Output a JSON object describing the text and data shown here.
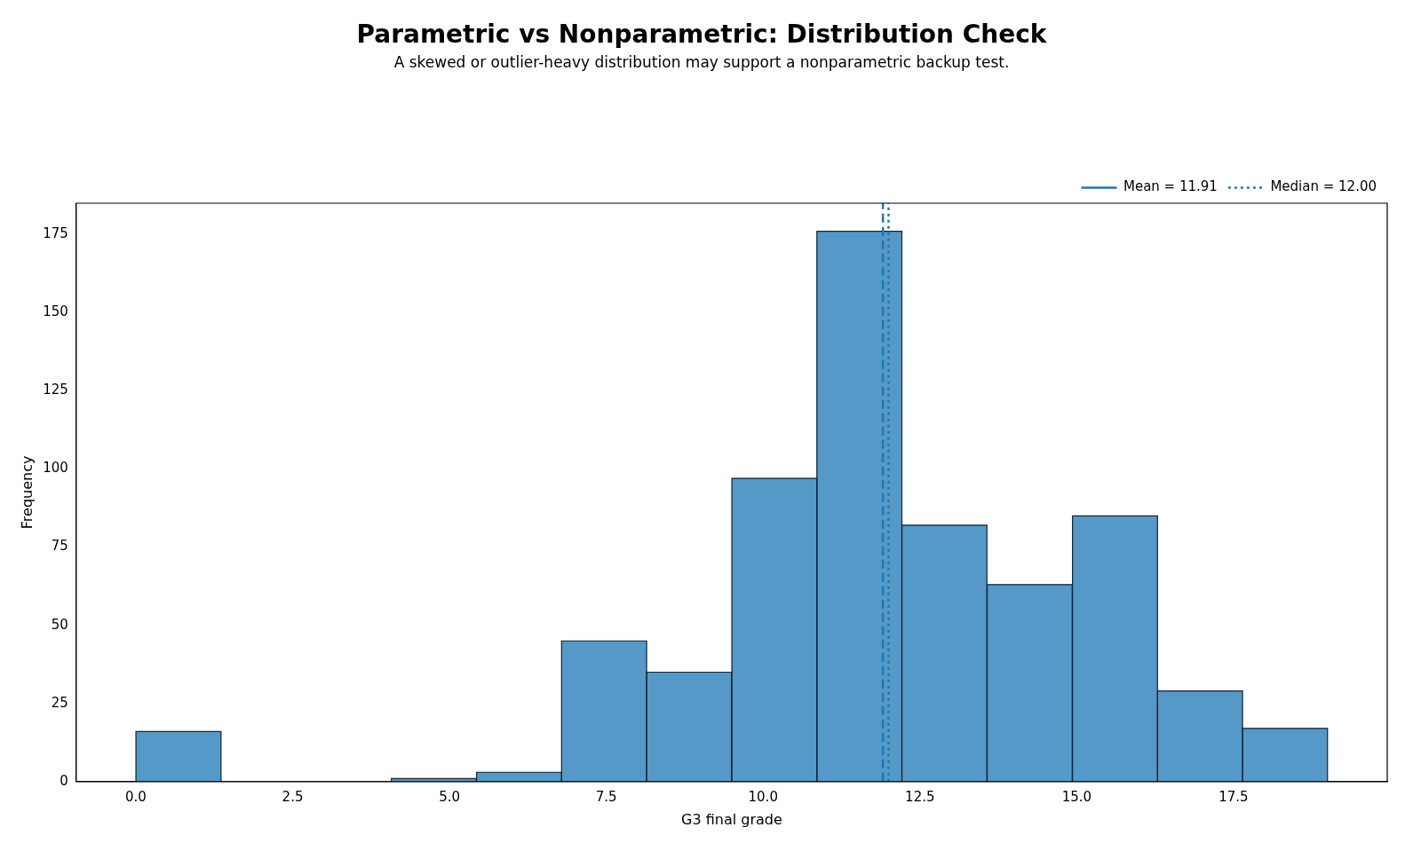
{
  "chart_data": {
    "type": "histogram",
    "title": "Parametric vs Nonparametric: Distribution Check",
    "subtitle": "A skewed or outlier-heavy distribution may support a nonparametric backup test.",
    "xlabel": "G3 final grade",
    "ylabel": "Frequency",
    "bins": [
      0,
      1.36,
      2.71,
      4.07,
      5.43,
      6.79,
      8.14,
      9.5,
      10.86,
      12.21,
      13.57,
      14.93,
      16.29,
      17.64,
      19
    ],
    "values": [
      16,
      0,
      0,
      1,
      3,
      45,
      35,
      97,
      176,
      82,
      63,
      85,
      29,
      17
    ],
    "color": "#5599c8",
    "xlim": [
      -0.95,
      19.95
    ],
    "xticks": [
      {
        "value": 0,
        "label": "0.0"
      },
      {
        "value": 2.5,
        "label": "2.5"
      },
      {
        "value": 5,
        "label": "5.0"
      },
      {
        "value": 7.5,
        "label": "7.5"
      },
      {
        "value": 10,
        "label": "10.0"
      },
      {
        "value": 12.5,
        "label": "12.5"
      },
      {
        "value": 15,
        "label": "15.0"
      },
      {
        "value": 17.5,
        "label": "17.5"
      }
    ],
    "ylim": [
      0,
      185
    ],
    "yticks": [
      0,
      25,
      50,
      75,
      100,
      125,
      150,
      175
    ],
    "ref_lines": [
      {
        "axis": "x",
        "value": 11.91,
        "label": "Mean = 11.91",
        "color": "#1f77b4",
        "line_style": "dashed"
      },
      {
        "axis": "x",
        "value": 12.0,
        "label": "Median = 12.00",
        "color": "#1f77b4",
        "line_style": "dotted"
      }
    ],
    "grid": false,
    "legend": "top right"
  }
}
